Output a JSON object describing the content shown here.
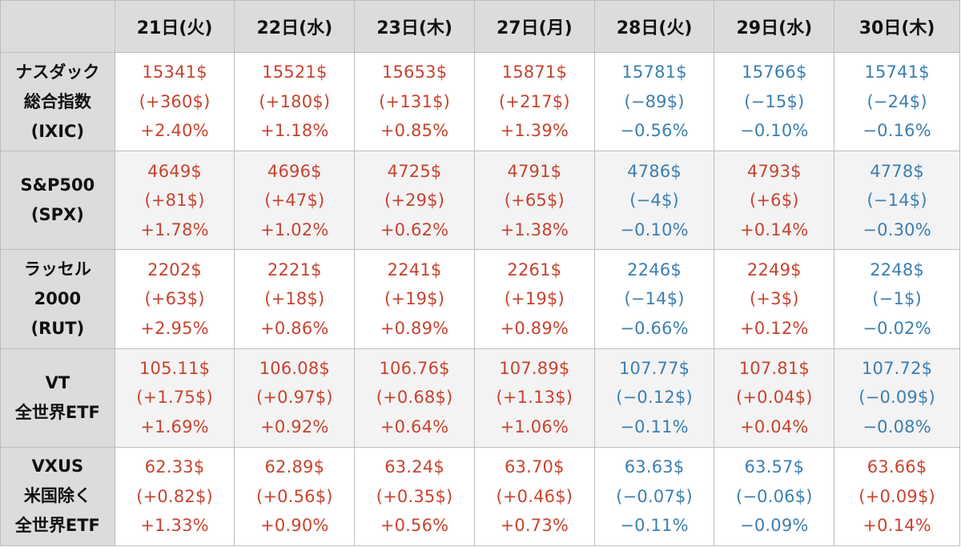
{
  "table": {
    "header": {
      "corner": "",
      "days": [
        "21日(火)",
        "22日(水)",
        "23日(木)",
        "27日(月)",
        "28日(火)",
        "29日(水)",
        "30日(木)"
      ]
    },
    "colors": {
      "up": "#c7432f",
      "down": "#3b7fb0",
      "header_bg": "#dcdcdc"
    },
    "rows": [
      {
        "label": [
          "ナスダック",
          "総合指数",
          "(IXIC)"
        ],
        "cells": [
          {
            "direction": "up",
            "price": "15341$",
            "change": "(+360$)",
            "pct": "+2.40%"
          },
          {
            "direction": "up",
            "price": "15521$",
            "change": "(+180$)",
            "pct": "+1.18%"
          },
          {
            "direction": "up",
            "price": "15653$",
            "change": "(+131$)",
            "pct": "+0.85%"
          },
          {
            "direction": "up",
            "price": "15871$",
            "change": "(+217$)",
            "pct": "+1.39%"
          },
          {
            "direction": "down",
            "price": "15781$",
            "change": "(−89$)",
            "pct": "−0.56%"
          },
          {
            "direction": "down",
            "price": "15766$",
            "change": "(−15$)",
            "pct": "−0.10%"
          },
          {
            "direction": "down",
            "price": "15741$",
            "change": "(−24$)",
            "pct": "−0.16%"
          }
        ]
      },
      {
        "label": [
          "S&P500",
          "(SPX)"
        ],
        "cells": [
          {
            "direction": "up",
            "price": "4649$",
            "change": "(+81$)",
            "pct": "+1.78%"
          },
          {
            "direction": "up",
            "price": "4696$",
            "change": "(+47$)",
            "pct": "+1.02%"
          },
          {
            "direction": "up",
            "price": "4725$",
            "change": "(+29$)",
            "pct": "+0.62%"
          },
          {
            "direction": "up",
            "price": "4791$",
            "change": "(+65$)",
            "pct": "+1.38%"
          },
          {
            "direction": "down",
            "price": "4786$",
            "change": "(−4$)",
            "pct": "−0.10%"
          },
          {
            "direction": "up",
            "price": "4793$",
            "change": "(+6$)",
            "pct": "+0.14%"
          },
          {
            "direction": "down",
            "price": "4778$",
            "change": "(−14$)",
            "pct": "−0.30%"
          }
        ]
      },
      {
        "label": [
          "ラッセル",
          "2000",
          "(RUT)"
        ],
        "cells": [
          {
            "direction": "up",
            "price": "2202$",
            "change": "(+63$)",
            "pct": "+2.95%"
          },
          {
            "direction": "up",
            "price": "2221$",
            "change": "(+18$)",
            "pct": "+0.86%"
          },
          {
            "direction": "up",
            "price": "2241$",
            "change": "(+19$)",
            "pct": "+0.89%"
          },
          {
            "direction": "up",
            "price": "2261$",
            "change": "(+19$)",
            "pct": "+0.89%"
          },
          {
            "direction": "down",
            "price": "2246$",
            "change": "(−14$)",
            "pct": "−0.66%"
          },
          {
            "direction": "up",
            "price": "2249$",
            "change": "(+3$)",
            "pct": "+0.12%"
          },
          {
            "direction": "down",
            "price": "2248$",
            "change": "(−1$)",
            "pct": "−0.02%"
          }
        ]
      },
      {
        "label": [
          "VT",
          "全世界ETF"
        ],
        "cells": [
          {
            "direction": "up",
            "price": "105.11$",
            "change": "(+1.75$)",
            "pct": "+1.69%"
          },
          {
            "direction": "up",
            "price": "106.08$",
            "change": "(+0.97$)",
            "pct": "+0.92%"
          },
          {
            "direction": "up",
            "price": "106.76$",
            "change": "(+0.68$)",
            "pct": "+0.64%"
          },
          {
            "direction": "up",
            "price": "107.89$",
            "change": "(+1.13$)",
            "pct": "+1.06%"
          },
          {
            "direction": "down",
            "price": "107.77$",
            "change": "(−0.12$)",
            "pct": "−0.11%"
          },
          {
            "direction": "up",
            "price": "107.81$",
            "change": "(+0.04$)",
            "pct": "+0.04%"
          },
          {
            "direction": "down",
            "price": "107.72$",
            "change": "(−0.09$)",
            "pct": "−0.08%"
          }
        ]
      },
      {
        "label": [
          "VXUS",
          "米国除く",
          "全世界ETF"
        ],
        "cells": [
          {
            "direction": "up",
            "price": "62.33$",
            "change": "(+0.82$)",
            "pct": "+1.33%"
          },
          {
            "direction": "up",
            "price": "62.89$",
            "change": "(+0.56$)",
            "pct": "+0.90%"
          },
          {
            "direction": "up",
            "price": "63.24$",
            "change": "(+0.35$)",
            "pct": "+0.56%"
          },
          {
            "direction": "up",
            "price": "63.70$",
            "change": "(+0.46$)",
            "pct": "+0.73%"
          },
          {
            "direction": "down",
            "price": "63.63$",
            "change": "(−0.07$)",
            "pct": "−0.11%"
          },
          {
            "direction": "down",
            "price": "63.57$",
            "change": "(−0.06$)",
            "pct": "−0.09%"
          },
          {
            "direction": "up",
            "price": "63.66$",
            "change": "(+0.09$)",
            "pct": "+0.14%"
          }
        ]
      }
    ]
  },
  "chart_data": {
    "type": "table",
    "columns": [
      "21日(火)",
      "22日(水)",
      "23日(木)",
      "27日(月)",
      "28日(火)",
      "29日(水)",
      "30日(木)"
    ],
    "series": [
      {
        "name": "ナスダック総合指数(IXIC)",
        "close": [
          15341,
          15521,
          15653,
          15871,
          15781,
          15766,
          15741
        ],
        "change": [
          360,
          180,
          131,
          217,
          -89,
          -15,
          -24
        ],
        "pct": [
          2.4,
          1.18,
          0.85,
          1.39,
          -0.56,
          -0.1,
          -0.16
        ]
      },
      {
        "name": "S&P500(SPX)",
        "close": [
          4649,
          4696,
          4725,
          4791,
          4786,
          4793,
          4778
        ],
        "change": [
          81,
          47,
          29,
          65,
          -4,
          6,
          -14
        ],
        "pct": [
          1.78,
          1.02,
          0.62,
          1.38,
          -0.1,
          0.14,
          -0.3
        ]
      },
      {
        "name": "ラッセル2000(RUT)",
        "close": [
          2202,
          2221,
          2241,
          2261,
          2246,
          2249,
          2248
        ],
        "change": [
          63,
          18,
          19,
          19,
          -14,
          3,
          -1
        ],
        "pct": [
          2.95,
          0.86,
          0.89,
          0.89,
          -0.66,
          0.12,
          -0.02
        ]
      },
      {
        "name": "VT全世界ETF",
        "close": [
          105.11,
          106.08,
          106.76,
          107.89,
          107.77,
          107.81,
          107.72
        ],
        "change": [
          1.75,
          0.97,
          0.68,
          1.13,
          -0.12,
          0.04,
          -0.09
        ],
        "pct": [
          1.69,
          0.92,
          0.64,
          1.06,
          -0.11,
          0.04,
          -0.08
        ]
      },
      {
        "name": "VXUS米国除く全世界ETF",
        "close": [
          62.33,
          62.89,
          63.24,
          63.7,
          63.63,
          63.57,
          63.66
        ],
        "change": [
          0.82,
          0.56,
          0.35,
          0.46,
          -0.07,
          -0.06,
          0.09
        ],
        "pct": [
          1.33,
          0.9,
          0.56,
          0.73,
          -0.11,
          -0.09,
          0.14
        ]
      }
    ]
  }
}
